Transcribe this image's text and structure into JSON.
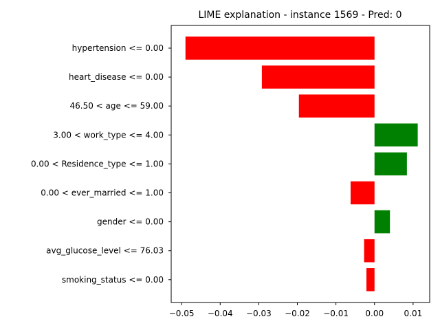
{
  "chart_data": {
    "type": "bar",
    "orientation": "horizontal",
    "title": "LIME explanation - instance 1569 - Pred: 0",
    "xlabel": "",
    "ylabel": "",
    "categories": [
      "hypertension <= 0.00",
      "heart_disease <= 0.00",
      "46.50 < age <= 59.00",
      "3.00 < work_type <= 4.00",
      "0.00 < Residence_type <= 1.00",
      "0.00 < ever_married <= 1.00",
      "gender <= 0.00",
      "avg_glucose_level <= 76.03",
      "smoking_status <= 0.00"
    ],
    "values": [
      -0.049,
      -0.0292,
      -0.0196,
      0.0112,
      0.0084,
      -0.0062,
      0.004,
      -0.0027,
      -0.0021
    ],
    "xlim": [
      -0.0527,
      0.0143
    ],
    "xticks": [
      -0.05,
      -0.04,
      -0.03,
      -0.02,
      -0.01,
      0.0,
      0.01
    ],
    "xtick_labels": [
      "−0.05",
      "−0.04",
      "−0.03",
      "−0.02",
      "−0.01",
      "0.00",
      "0.01"
    ],
    "grid": false,
    "colors": {
      "positive": "#008000",
      "negative": "#ff0000"
    }
  }
}
